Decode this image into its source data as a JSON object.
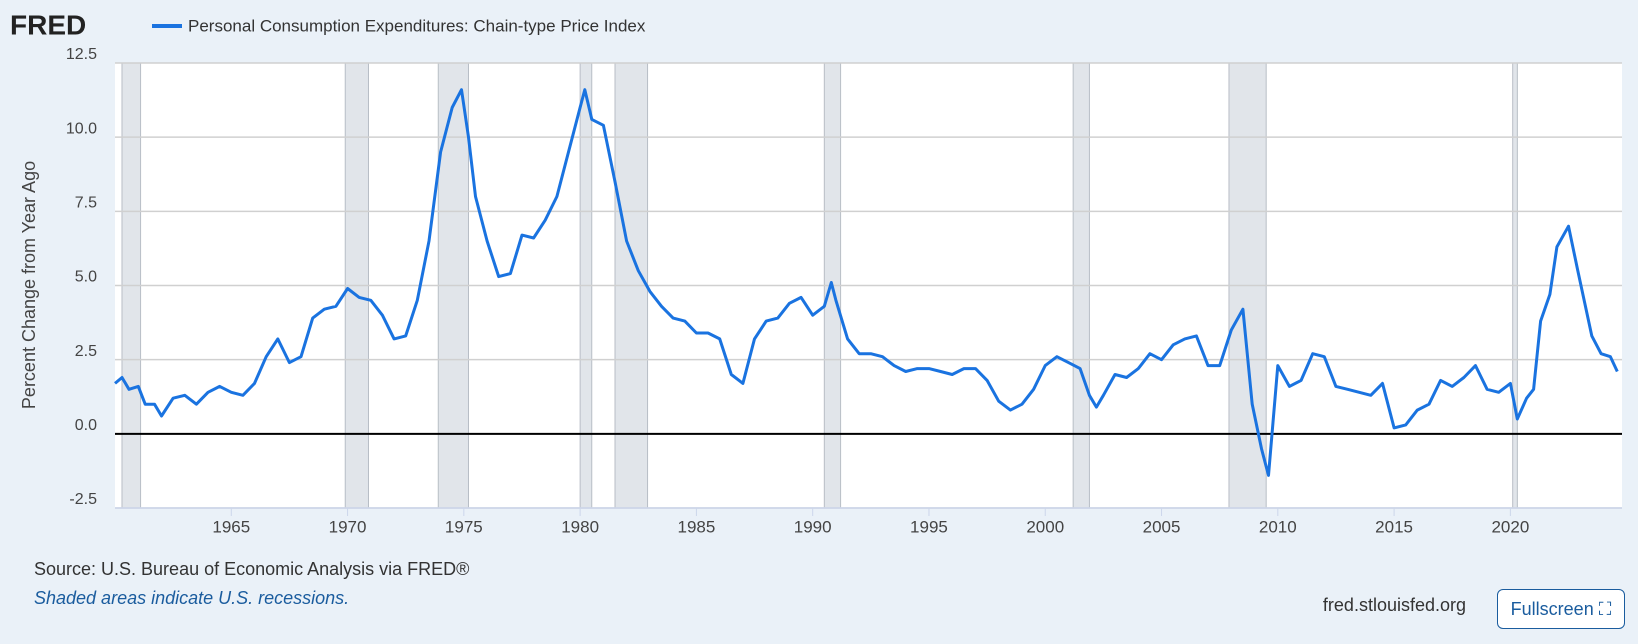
{
  "chart_data": {
    "type": "line",
    "logo": "FRED",
    "ylabel": "Percent Change from Year Ago",
    "source": "Source: U.S. Bureau of Economic Analysis via FRED®",
    "note": "Shaded areas indicate U.S. recessions.",
    "site": "fred.stlouisfed.org",
    "button": "Fullscreen",
    "xlim": [
      1960,
      2024.8
    ],
    "ylim": [
      -2.5,
      12.5
    ],
    "xticks": [
      1965,
      1970,
      1975,
      1980,
      1985,
      1990,
      1995,
      2000,
      2005,
      2010,
      2015,
      2020
    ],
    "yticks": [
      {
        "value": -2.5,
        "label": "-2.5"
      },
      {
        "value": 0,
        "label": "0.0"
      },
      2.5,
      {
        "value": 5,
        "label": "5.0"
      },
      7.5,
      {
        "value": 10,
        "label": "10.0"
      },
      {
        "value": 12.5,
        "label": "12.5"
      }
    ],
    "grid": true,
    "recession_color": "#e1e5ea",
    "recessions": [
      [
        1960.3,
        1961.1
      ],
      [
        1969.9,
        1970.9
      ],
      [
        1973.9,
        1975.2
      ],
      [
        1980.0,
        1980.5
      ],
      [
        1981.5,
        1982.9
      ],
      [
        1990.5,
        1991.2
      ],
      [
        2001.2,
        2001.9
      ],
      [
        2007.9,
        2009.5
      ],
      [
        2020.1,
        2020.3
      ]
    ],
    "x": [
      1960.0,
      1960.3,
      1960.6,
      1961.0,
      1961.3,
      1961.7,
      1962.0,
      1962.5,
      1963.0,
      1963.5,
      1964.0,
      1964.5,
      1965.0,
      1965.5,
      1966.0,
      1966.5,
      1967.0,
      1967.5,
      1968.0,
      1968.5,
      1969.0,
      1969.5,
      1970.0,
      1970.5,
      1971.0,
      1971.5,
      1972.0,
      1972.5,
      1973.0,
      1973.5,
      1974.0,
      1974.5,
      1974.9,
      1975.2,
      1975.5,
      1976.0,
      1976.5,
      1977.0,
      1977.5,
      1978.0,
      1978.5,
      1979.0,
      1979.5,
      1980.0,
      1980.2,
      1980.5,
      1981.0,
      1981.5,
      1982.0,
      1982.5,
      1983.0,
      1983.5,
      1984.0,
      1984.5,
      1985.0,
      1985.5,
      1986.0,
      1986.5,
      1987.0,
      1987.5,
      1988.0,
      1988.5,
      1989.0,
      1989.5,
      1990.0,
      1990.5,
      1990.8,
      1991.0,
      1991.5,
      1992.0,
      1992.5,
      1993.0,
      1993.5,
      1994.0,
      1994.5,
      1995.0,
      1995.5,
      1996.0,
      1996.5,
      1997.0,
      1997.5,
      1998.0,
      1998.5,
      1999.0,
      1999.5,
      2000.0,
      2000.5,
      2001.0,
      2001.5,
      2001.9,
      2002.2,
      2002.5,
      2003.0,
      2003.5,
      2004.0,
      2004.5,
      2005.0,
      2005.5,
      2006.0,
      2006.5,
      2007.0,
      2007.5,
      2008.0,
      2008.5,
      2008.9,
      2009.3,
      2009.6,
      2010.0,
      2010.5,
      2011.0,
      2011.5,
      2012.0,
      2012.5,
      2013.0,
      2013.5,
      2014.0,
      2014.5,
      2015.0,
      2015.5,
      2016.0,
      2016.5,
      2017.0,
      2017.5,
      2018.0,
      2018.5,
      2019.0,
      2019.5,
      2020.0,
      2020.3,
      2020.7,
      2021.0,
      2021.3,
      2021.7,
      2022.0,
      2022.5,
      2022.9,
      2023.2,
      2023.5,
      2023.9,
      2024.3,
      2024.6
    ],
    "series": [
      {
        "name": "Personal Consumption Expenditures: Chain-type Price Index",
        "color": "#1a73e0",
        "values": [
          1.7,
          1.9,
          1.5,
          1.6,
          1.0,
          1.0,
          0.6,
          1.2,
          1.3,
          1.0,
          1.4,
          1.6,
          1.4,
          1.3,
          1.7,
          2.6,
          3.2,
          2.4,
          2.6,
          3.9,
          4.2,
          4.3,
          4.9,
          4.6,
          4.5,
          4.0,
          3.2,
          3.3,
          4.5,
          6.5,
          9.5,
          11.0,
          11.6,
          10.0,
          8.0,
          6.5,
          5.3,
          5.4,
          6.7,
          6.6,
          7.2,
          8.0,
          9.5,
          11.0,
          11.6,
          10.6,
          10.4,
          8.5,
          6.5,
          5.5,
          4.8,
          4.3,
          3.9,
          3.8,
          3.4,
          3.4,
          3.2,
          2.0,
          1.7,
          3.2,
          3.8,
          3.9,
          4.4,
          4.6,
          4.0,
          4.3,
          5.1,
          4.5,
          3.2,
          2.7,
          2.7,
          2.6,
          2.3,
          2.1,
          2.2,
          2.2,
          2.1,
          2.0,
          2.2,
          2.2,
          1.8,
          1.1,
          0.8,
          1.0,
          1.5,
          2.3,
          2.6,
          2.4,
          2.2,
          1.3,
          0.9,
          1.3,
          2.0,
          1.9,
          2.2,
          2.7,
          2.5,
          3.0,
          3.2,
          3.3,
          2.3,
          2.3,
          3.5,
          4.2,
          1.0,
          -0.5,
          -1.4,
          2.3,
          1.6,
          1.8,
          2.7,
          2.6,
          1.6,
          1.5,
          1.4,
          1.3,
          1.7,
          0.2,
          0.3,
          0.8,
          1.0,
          1.8,
          1.6,
          1.9,
          2.3,
          1.5,
          1.4,
          1.7,
          0.5,
          1.2,
          1.5,
          3.8,
          4.7,
          6.3,
          7.0,
          5.5,
          4.4,
          3.3,
          2.7,
          2.6,
          2.1
        ]
      }
    ]
  }
}
